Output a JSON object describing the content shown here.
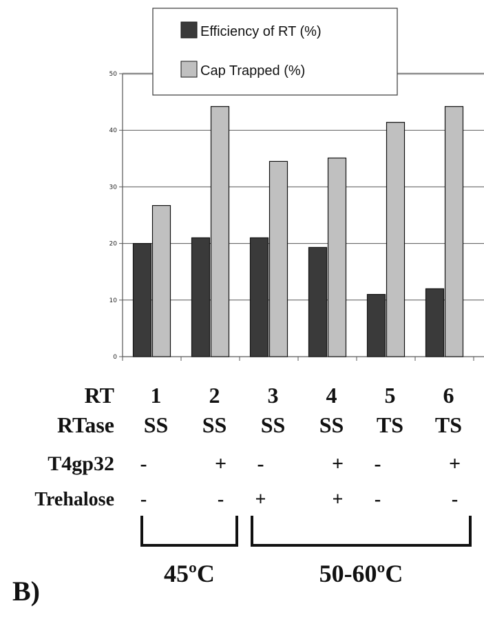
{
  "chart_data": {
    "type": "bar",
    "categories": [
      "1",
      "2",
      "3",
      "4",
      "5",
      "6"
    ],
    "series": [
      {
        "name": "Efficiency of RT (%)",
        "values": [
          20,
          21,
          21,
          19.3,
          11,
          12
        ],
        "color": "#3a3a3a"
      },
      {
        "name": "Cap Trapped (%)",
        "values": [
          26.7,
          44.2,
          34.5,
          35.1,
          41.4,
          44.2
        ],
        "color": "#c0c0c0"
      }
    ],
    "ylim": [
      0,
      50
    ],
    "yticks": [
      "0",
      "10",
      "20",
      "30",
      "40",
      "50"
    ],
    "grid": true,
    "legend_position": "top"
  },
  "conditions": {
    "rows": [
      {
        "label": "RT",
        "values": [
          "1",
          "2",
          "3",
          "4",
          "5",
          "6"
        ]
      },
      {
        "label": "RTase",
        "values": [
          "SS",
          "SS",
          "SS",
          "SS",
          "TS",
          "TS"
        ]
      },
      {
        "label": "T4gp32",
        "values": [
          "-",
          "+",
          "-",
          "+",
          "-",
          "+"
        ]
      },
      {
        "label": "Trehalose",
        "values": [
          "-",
          "-",
          "+",
          "+",
          "-",
          "-"
        ]
      }
    ],
    "groups": [
      {
        "label": "45ºC",
        "from": 0,
        "to": 1
      },
      {
        "label": "50-60ºC",
        "from": 2,
        "to": 5
      }
    ]
  },
  "panel_label": "B)"
}
